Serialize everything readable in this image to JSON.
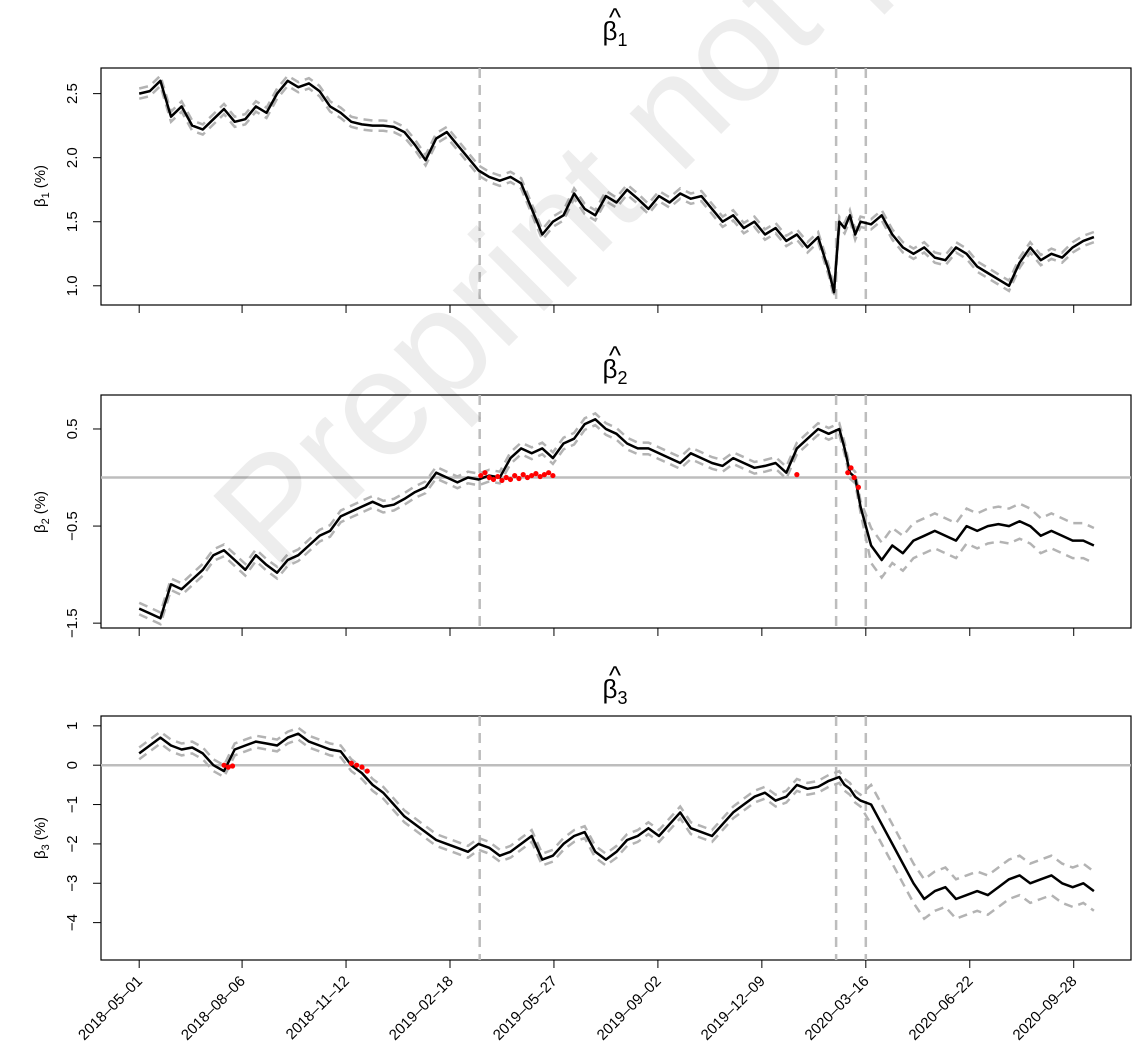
{
  "figure": {
    "x_ticks": [
      "2018–05–01",
      "2018–08–06",
      "2018–11–12",
      "2019–02–18",
      "2019–05–27",
      "2019–09–02",
      "2019–12–09",
      "2020–03–16",
      "2020–06–22",
      "2020–09–28"
    ],
    "x_tick_days": [
      0,
      97,
      195,
      293,
      391,
      489,
      587,
      685,
      783,
      881
    ],
    "x_range_days": [
      -36,
      935
    ],
    "vlines_days": [
      321,
      657,
      685
    ],
    "watermark": "Preprint not peer reviewed",
    "colors": {
      "line": "#000000",
      "band": "#b3b3b3",
      "zero": "#bdbdbd",
      "vline": "#bdbdbd",
      "insignificant": "#ff0000"
    }
  },
  "chart_data": [
    {
      "type": "line",
      "title_symbol": "β",
      "title_sub": "1",
      "ylabel_symbol": "β",
      "ylabel_sub": "1",
      "ylabel_unit": "(%)",
      "ylim": [
        0.85,
        2.7
      ],
      "yticks": [
        1.0,
        1.5,
        2.0,
        2.5
      ],
      "ytick_labels": [
        "1.0",
        "1.5",
        "2.0",
        "2.5"
      ],
      "zero_line": false,
      "band": 0.04,
      "x_days": [
        0,
        10,
        20,
        30,
        40,
        50,
        60,
        70,
        80,
        90,
        100,
        110,
        120,
        130,
        140,
        150,
        160,
        170,
        180,
        190,
        200,
        210,
        220,
        230,
        240,
        250,
        260,
        270,
        280,
        290,
        300,
        310,
        320,
        330,
        340,
        350,
        360,
        370,
        380,
        390,
        400,
        410,
        420,
        430,
        440,
        450,
        460,
        470,
        480,
        490,
        500,
        510,
        520,
        530,
        540,
        550,
        560,
        570,
        580,
        590,
        600,
        610,
        620,
        630,
        640,
        650,
        655,
        660,
        665,
        670,
        675,
        680,
        690,
        700,
        710,
        720,
        730,
        740,
        750,
        760,
        770,
        780,
        790,
        800,
        810,
        820,
        830,
        840,
        850,
        860,
        870,
        880,
        890,
        900
      ],
      "y": [
        2.5,
        2.52,
        2.6,
        2.32,
        2.4,
        2.25,
        2.22,
        2.3,
        2.38,
        2.28,
        2.3,
        2.4,
        2.35,
        2.5,
        2.6,
        2.55,
        2.58,
        2.52,
        2.4,
        2.35,
        2.28,
        2.26,
        2.25,
        2.25,
        2.24,
        2.2,
        2.1,
        1.98,
        2.15,
        2.2,
        2.1,
        2.0,
        1.9,
        1.85,
        1.82,
        1.85,
        1.8,
        1.6,
        1.4,
        1.5,
        1.55,
        1.72,
        1.6,
        1.55,
        1.7,
        1.65,
        1.75,
        1.68,
        1.6,
        1.7,
        1.65,
        1.72,
        1.68,
        1.7,
        1.6,
        1.5,
        1.55,
        1.45,
        1.5,
        1.4,
        1.45,
        1.35,
        1.4,
        1.3,
        1.38,
        1.12,
        0.95,
        1.5,
        1.45,
        1.55,
        1.4,
        1.5,
        1.48,
        1.55,
        1.4,
        1.3,
        1.25,
        1.3,
        1.22,
        1.2,
        1.3,
        1.25,
        1.15,
        1.1,
        1.05,
        1.0,
        1.18,
        1.3,
        1.2,
        1.25,
        1.22,
        1.3,
        1.35,
        1.38
      ],
      "insignificant_points": []
    },
    {
      "type": "line",
      "title_symbol": "β",
      "title_sub": "2",
      "ylabel_symbol": "β",
      "ylabel_sub": "2",
      "ylabel_unit": "(%)",
      "ylim": [
        -1.55,
        0.85
      ],
      "yticks": [
        -1.5,
        -0.5,
        0.5
      ],
      "ytick_labels": [
        "−1.5",
        "−0.5",
        "0.5"
      ],
      "zero_line": true,
      "band": 0.06,
      "band_after_day": 690,
      "band_after": 0.18,
      "x_days": [
        0,
        10,
        20,
        30,
        40,
        50,
        60,
        70,
        80,
        90,
        100,
        110,
        120,
        130,
        140,
        150,
        160,
        170,
        180,
        190,
        200,
        210,
        220,
        230,
        240,
        250,
        260,
        270,
        280,
        290,
        300,
        310,
        320,
        330,
        340,
        350,
        360,
        370,
        380,
        390,
        400,
        410,
        420,
        430,
        440,
        450,
        460,
        470,
        480,
        490,
        500,
        510,
        520,
        530,
        540,
        550,
        560,
        570,
        580,
        590,
        600,
        610,
        620,
        630,
        640,
        650,
        660,
        665,
        670,
        675,
        680,
        690,
        700,
        710,
        720,
        730,
        740,
        750,
        760,
        770,
        780,
        790,
        800,
        810,
        820,
        830,
        840,
        850,
        860,
        870,
        880,
        890,
        900
      ],
      "y": [
        -1.35,
        -1.4,
        -1.45,
        -1.1,
        -1.15,
        -1.05,
        -0.95,
        -0.8,
        -0.75,
        -0.85,
        -0.95,
        -0.8,
        -0.9,
        -0.98,
        -0.85,
        -0.8,
        -0.7,
        -0.6,
        -0.55,
        -0.4,
        -0.35,
        -0.3,
        -0.25,
        -0.3,
        -0.28,
        -0.22,
        -0.15,
        -0.1,
        0.05,
        0.0,
        -0.05,
        0.0,
        -0.02,
        0.02,
        0.0,
        0.2,
        0.3,
        0.25,
        0.3,
        0.2,
        0.35,
        0.4,
        0.55,
        0.6,
        0.5,
        0.45,
        0.35,
        0.3,
        0.3,
        0.25,
        0.2,
        0.15,
        0.25,
        0.2,
        0.15,
        0.12,
        0.2,
        0.15,
        0.1,
        0.12,
        0.15,
        0.05,
        0.3,
        0.4,
        0.5,
        0.45,
        0.5,
        0.3,
        0.05,
        0.0,
        -0.3,
        -0.7,
        -0.85,
        -0.7,
        -0.78,
        -0.65,
        -0.6,
        -0.55,
        -0.6,
        -0.65,
        -0.5,
        -0.55,
        -0.5,
        -0.48,
        -0.5,
        -0.45,
        -0.5,
        -0.6,
        -0.55,
        -0.6,
        -0.65,
        -0.65,
        -0.7
      ],
      "insignificant_points": [
        [
          322,
          0.02
        ],
        [
          326,
          0.05
        ],
        [
          330,
          0.0
        ],
        [
          334,
          -0.02
        ],
        [
          338,
          0.01
        ],
        [
          342,
          -0.03
        ],
        [
          346,
          0.0
        ],
        [
          350,
          -0.02
        ],
        [
          354,
          0.02
        ],
        [
          358,
          -0.01
        ],
        [
          362,
          0.03
        ],
        [
          366,
          0.0
        ],
        [
          370,
          0.02
        ],
        [
          374,
          0.04
        ],
        [
          378,
          0.01
        ],
        [
          382,
          0.03
        ],
        [
          386,
          0.05
        ],
        [
          390,
          0.02
        ],
        [
          620,
          0.03
        ],
        [
          668,
          0.05
        ],
        [
          671,
          0.1
        ],
        [
          674,
          0.0
        ],
        [
          678,
          -0.1
        ]
      ]
    },
    {
      "type": "line",
      "title_symbol": "β",
      "title_sub": "3",
      "ylabel_symbol": "β",
      "ylabel_sub": "3",
      "ylabel_unit": "(%)",
      "ylim": [
        -4.95,
        1.25
      ],
      "yticks": [
        -4,
        -3,
        -2,
        -1,
        0,
        1
      ],
      "ytick_labels": [
        "−4",
        "−3",
        "−2",
        "−1",
        "0",
        "1"
      ],
      "zero_line": true,
      "band": 0.15,
      "band_after_day": 690,
      "band_after": 0.5,
      "x_days": [
        0,
        10,
        20,
        30,
        40,
        50,
        60,
        70,
        80,
        90,
        100,
        110,
        120,
        130,
        140,
        150,
        160,
        170,
        180,
        190,
        200,
        210,
        220,
        230,
        240,
        250,
        260,
        270,
        280,
        290,
        300,
        310,
        320,
        330,
        340,
        350,
        360,
        370,
        380,
        390,
        400,
        410,
        420,
        430,
        440,
        450,
        460,
        470,
        480,
        490,
        500,
        510,
        520,
        530,
        540,
        550,
        560,
        570,
        580,
        590,
        600,
        610,
        620,
        630,
        640,
        650,
        660,
        665,
        670,
        675,
        680,
        690,
        700,
        710,
        720,
        730,
        740,
        750,
        760,
        770,
        780,
        790,
        800,
        810,
        820,
        830,
        840,
        850,
        860,
        870,
        880,
        890,
        900
      ],
      "y": [
        0.3,
        0.5,
        0.7,
        0.5,
        0.4,
        0.45,
        0.3,
        0.0,
        -0.15,
        0.4,
        0.5,
        0.6,
        0.55,
        0.5,
        0.7,
        0.8,
        0.6,
        0.5,
        0.4,
        0.35,
        0.0,
        -0.2,
        -0.5,
        -0.7,
        -1.0,
        -1.3,
        -1.5,
        -1.7,
        -1.9,
        -2.0,
        -2.1,
        -2.2,
        -2.0,
        -2.1,
        -2.3,
        -2.2,
        -2.0,
        -1.8,
        -2.4,
        -2.3,
        -2.0,
        -1.8,
        -1.7,
        -2.2,
        -2.4,
        -2.2,
        -1.9,
        -1.8,
        -1.6,
        -1.8,
        -1.5,
        -1.2,
        -1.6,
        -1.7,
        -1.8,
        -1.5,
        -1.2,
        -1.0,
        -0.8,
        -0.7,
        -0.9,
        -0.8,
        -0.5,
        -0.6,
        -0.55,
        -0.4,
        -0.3,
        -0.5,
        -0.6,
        -0.8,
        -0.9,
        -1.0,
        -1.5,
        -2.0,
        -2.5,
        -3.0,
        -3.4,
        -3.2,
        -3.1,
        -3.4,
        -3.3,
        -3.2,
        -3.3,
        -3.1,
        -2.9,
        -2.8,
        -3.0,
        -2.9,
        -2.8,
        -3.0,
        -3.1,
        -3.0,
        -3.2
      ],
      "insignificant_points": [
        [
          80,
          0.0
        ],
        [
          84,
          -0.05
        ],
        [
          88,
          -0.02
        ],
        [
          200,
          0.05
        ],
        [
          205,
          0.0
        ],
        [
          210,
          -0.05
        ],
        [
          215,
          -0.15
        ]
      ]
    }
  ]
}
